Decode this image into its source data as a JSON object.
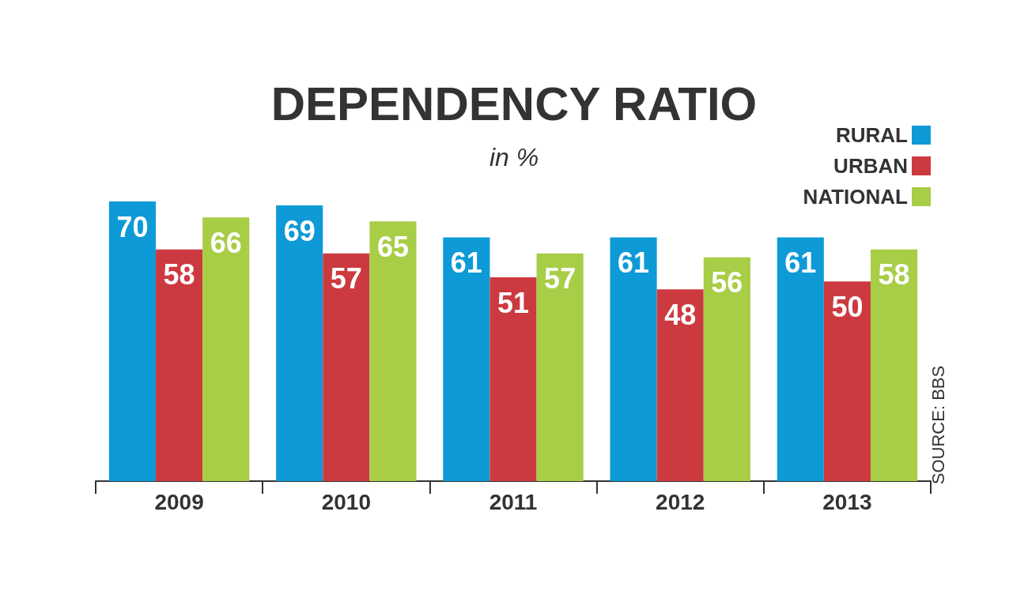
{
  "chart_data": {
    "type": "bar",
    "title": "DEPENDENCY RATIO",
    "subtitle": "in %",
    "categories": [
      "2009",
      "2010",
      "2011",
      "2012",
      "2013"
    ],
    "series": [
      {
        "name": "RURAL",
        "color": "#0e9ad7",
        "values": [
          70,
          69,
          61,
          61,
          61
        ]
      },
      {
        "name": "URBAN",
        "color": "#cc3a40",
        "values": [
          58,
          57,
          51,
          48,
          50
        ]
      },
      {
        "name": "NATIONAL",
        "color": "#a8cd46",
        "values": [
          66,
          65,
          57,
          56,
          58
        ]
      }
    ],
    "tick_labels": "x",
    "data_labels": true,
    "legend": "top right",
    "grid": false,
    "annotations": [
      "SOURCE: BBS"
    ]
  }
}
